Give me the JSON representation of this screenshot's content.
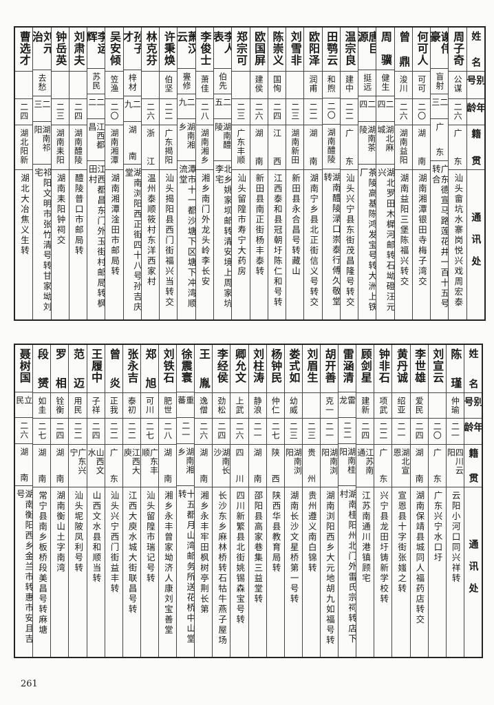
{
  "headers": [
    "姓名",
    "别号",
    "年龄",
    "籍贯",
    "通讯处"
  ],
  "tables": [
    {
      "rows": [
        [
          "周子奇",
          "公谋",
          "二六",
          "广东",
          "汕头畲坑水寨岗悦兴戏周宏泰"
        ],
        [
          "谢伟豪",
          "盲射",
          "二三",
          "广东",
          "广东德宣马路莲花井一百十五号转合"
        ],
        [
          "何可人",
          "可可",
          "二〇",
          "湖南",
          "湖南湘潭银田寺梅子湾交"
        ],
        [
          "曾鼎",
          "浚川",
          "二六",
          "湖南益阳",
          "湖南益阳三堡陈福兴转交"
        ],
        [
          "周骥",
          "健生",
          "二四",
          "湖北麻城",
          "湖北罗田木樨河邮转石坳磴汪元兴"
        ],
        [
          "唐巨源",
          "挺远",
          "二四",
          "湖南茶陵",
          "茶陵高基陈鸿发宝号转大洲上铁厂"
        ],
        [
          "温宗良",
          "建中",
          "二二",
          "广东",
          "汕头兴宁县东街茂昌隆号转交"
        ],
        [
          "田鹗云",
          "和煦",
          "二〇",
          "湖南醴陵",
          "湖南醴陵渌口崇泰行傅久敬堂转"
        ],
        [
          "欧阳泽",
          "润甫",
          "二二",
          "湖南",
          "湖南宁乡县北正街信义号转交"
        ],
        [
          "刘雪非",
          "",
          "二三",
          "湖南新田",
          "新田县永合昌号转藏山"
        ],
        [
          "陈崇义",
          "国恂",
          "二四",
          "江西",
          "江西泰和县冠朝圩陈仁和号转"
        ],
        [
          "欧国屏",
          "建侯",
          "二六",
          "湖南",
          "新田县南正街杨丰泰转"
        ],
        [
          "郑宗可",
          "",
          "二三",
          "广东丰顺",
          "汕头留隍市寿宁大药房"
        ],
        [
          "李人表",
          "伯先",
          "二五",
          "湖南醴陵",
          "北乡姚家坝邮转清安境上周家坑李宅"
        ],
        [
          "李俊士",
          "萧佳",
          "二八",
          "湖南湘乡",
          "湘乡南门外龙头岭李长安"
        ],
        [
          "萧汉云",
          "亹修",
          "二九",
          "湖南湘乡",
          "潭市十一都沙塘下区塘下冲湾顺流堂"
        ],
        [
          "许秉焕",
          "伯坚",
          "二二",
          "广东揭阳",
          "汕头揭阳县西门街福兴当转交"
        ],
        [
          "林克芬",
          "",
          "二六",
          "浙江",
          "温州泰顺筱村东洋西家村"
        ],
        [
          "孙子才",
          "梓材",
          "二九",
          "湖南",
          "湖南浏阳西正街四十八号孙吉庆堂"
        ],
        [
          "吴安倾",
          "笠渔",
          "二〇",
          "湖南湘潭",
          "湖南湘潭淦田市邮局转"
        ],
        [
          "李运辉",
          "苏民",
          "二二",
          "江西都昌",
          "江西都昌东门外玉街村邮局转枫田村"
        ],
        [
          "刘肃夫",
          "",
          "二四",
          "湖南醴陵",
          "醴陵普口市邮局转"
        ],
        [
          "钟岳英",
          "",
          "二三",
          "湖南耒阳",
          "湖南耒阳钟祠交"
        ],
        [
          "刘元治",
          "去愁",
          "二三",
          "湖南祁阳",
          "祁阳文明市张竹清号转甘家坳刘宅"
        ],
        [
          "曹选才",
          "",
          "二四",
          "湖北阳新",
          "湖北大冶焦义生转"
        ]
      ]
    },
    {
      "rows": [
        [
          "陈瑾",
          "仲瑜",
          "二一",
          "四川云阳",
          "云阳小河口同兴祥转"
        ],
        [
          "刘宣云",
          "",
          "二〇",
          "广东",
          "广东兴宁水口圩"
        ],
        [
          "李世雄",
          "爱民",
          "二四",
          "湖南",
          "湖南保靖县城同人福药店转交"
        ],
        [
          "黄丹诚",
          "绍亚",
          "二一",
          "湖北宣恩",
          "宣恩县十字街张媸之转"
        ],
        [
          "钟非石",
          "项武",
          "二二",
          "广东",
          "兴宁县龙田圩铸新学校转"
        ],
        [
          "顾剑星",
          "建新",
          "二四",
          "江苏南通",
          "江苏南通川港镇顾宅"
        ],
        [
          "雷涵清",
          "雷龙",
          "二二",
          "湖南桂阳",
          "湖南桂阳州北门外雷氏宗祠转店下村"
        ],
        [
          "胡开善",
          "克一",
          "二一",
          "湖南浏阳",
          "湖南浏阳西乡大元地胡九如福号转"
        ],
        [
          "刘眉生",
          "",
          "二三",
          "贵州",
          "贵州遵义南白锦转"
        ],
        [
          "娄式如",
          "幼威",
          "二三",
          "湖南浏阳",
          "湖南长沙文星桥第一号转"
        ],
        [
          "杨钟民",
          "仲仁",
          "二七",
          "陕西",
          "陕西华县教育局转"
        ],
        [
          "刘柱涛",
          "静浪",
          "二一",
          "湖南",
          "邵阳县高家巷集三益堂转"
        ],
        [
          "卿允文",
          "上武",
          "二六",
          "四川",
          "四川新繁县北街姚锡森宝号转"
        ],
        [
          "李经侯",
          "劲松",
          "二四",
          "湖南长沙",
          "长沙东乡麻林桥转石牯牛燕子屋场"
        ],
        [
          "王胤",
          "逸僧",
          "二六",
          "湖南",
          "湘乡永丰牢田枫树亭荆长第"
        ],
        [
          "徐震寰",
          "重蕃",
          "二一",
          "湖南湘乡",
          "十五都月山湾邮务所送花桥中山堂转"
        ],
        [
          "刘铁石",
          "肥世",
          "二八",
          "湖南",
          "湘乡永丰曾家坳济人康刘宝善堂"
        ],
        [
          "郑旭",
          "可川",
          "二七",
          "广东丰顺",
          "汕头留隍市瑞记号转"
        ],
        [
          "张永吉",
          "泰初",
          "二二",
          "江西大庾",
          "江西大庾水城大街联昌号转"
        ],
        [
          "曾炎",
          "正我",
          "二二",
          "广东",
          "汕头兴宁西门街益丰转"
        ],
        [
          "王履中",
          "子祥",
          "二四",
          "山西文水",
          "山西文水县和顺当转"
        ],
        [
          "范迈",
          "用民",
          "二二",
          "广东兴宁",
          "汕头坭陂凤利号转"
        ],
        [
          "罗相",
          "铨衡",
          "二四",
          "湖南",
          "湖南衡山土字南湾"
        ],
        [
          "段赟",
          "如圭",
          "二七",
          "湖南",
          "常宁县南乡板桥段美昌号转麻塘"
        ],
        [
          "聂树国",
          "立民",
          "二六",
          "湖南",
          "湖南衡阳西乡金兰市转惠市安且吉号"
        ]
      ]
    }
  ],
  "page_number": "261"
}
